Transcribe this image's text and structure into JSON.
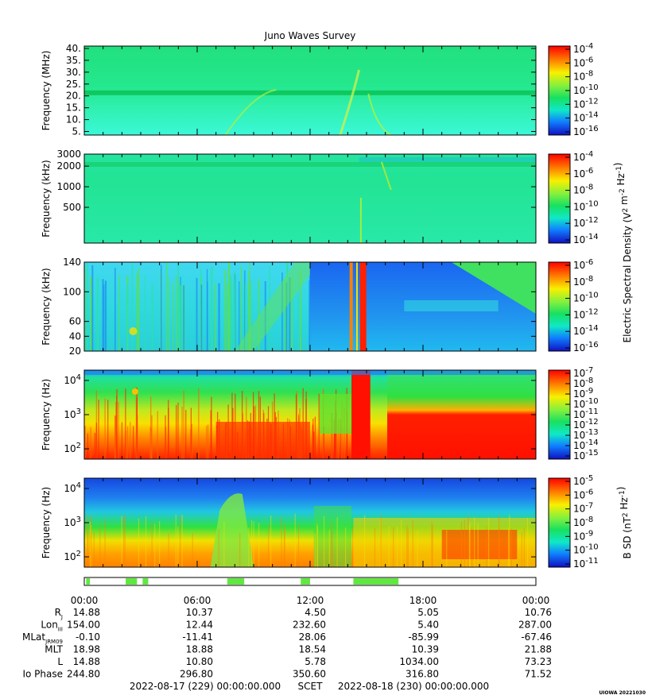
{
  "chart_data": {
    "type": "heatmap",
    "title": "Juno Waves Survey",
    "colors": {
      "background_e": "#1fe07a",
      "band_line": "#20d884",
      "blue_deep": "#1030d8",
      "blue_mid": "#2070f0",
      "red": "#ff1a00",
      "orange": "#ff8000",
      "yellow": "#f8e000"
    },
    "panels": [
      {
        "name": "panel-1",
        "ylabel": "Frequency (MHz)",
        "yticks": [
          "40.",
          "35.",
          "30.",
          "25.",
          "20.",
          "15.",
          "10.",
          "5."
        ],
        "ytick_values": [
          40,
          35,
          30,
          25,
          20,
          15,
          10,
          5
        ],
        "ylim": [
          3.5,
          41
        ]
      },
      {
        "name": "panel-2",
        "ylabel": "Frequency (kHz)",
        "yticks": [
          "3000",
          "2000",
          "1000",
          "500"
        ],
        "ytick_values": [
          3000,
          2000,
          1000,
          500
        ],
        "ylim": [
          150,
          3000
        ],
        "log": true
      },
      {
        "name": "panel-3",
        "ylabel": "Frequency (kHz)",
        "yticks": [
          "140",
          "100",
          "60",
          "40",
          "20"
        ],
        "ytick_values": [
          140,
          100,
          60,
          40,
          20
        ],
        "ylim": [
          20,
          140
        ]
      },
      {
        "name": "panel-4",
        "ylabel": "Frequency (Hz)",
        "yticks": [
          "10^4",
          "10^3",
          "10^2"
        ],
        "ytick_values": [
          10000,
          1000,
          100
        ],
        "ylim": [
          50,
          20000
        ],
        "log": true
      },
      {
        "name": "panel-5",
        "ylabel": "Frequency (Hz)",
        "yticks": [
          "10^4",
          "10^3",
          "10^2"
        ],
        "ytick_values": [
          10000,
          1000,
          100
        ],
        "ylim": [
          50,
          20000
        ],
        "log": true
      }
    ],
    "colorbars": [
      {
        "ticks": [
          "10^-4",
          "10^-6",
          "10^-8",
          "10^-10",
          "10^-12",
          "10^-14",
          "10^-16"
        ],
        "label": ""
      },
      {
        "ticks": [
          "10^-4",
          "10^-6",
          "10^-8",
          "10^-10",
          "10^-12",
          "10^-14"
        ],
        "label": "Electric Spectral Density (V^2 m^-2 Hz^-1)"
      },
      {
        "ticks": [
          "10^-6",
          "10^-8",
          "10^-10",
          "10^-12",
          "10^-14",
          "10^-16"
        ],
        "label": ""
      },
      {
        "ticks": [
          "10^-7",
          "10^-8",
          "10^-9",
          "10^-10",
          "10^-11",
          "10^-12",
          "10^-13",
          "10^-14",
          "10^-15"
        ],
        "label": ""
      },
      {
        "ticks": [
          "10^-5",
          "10^-6",
          "10^-7",
          "10^-8",
          "10^-9",
          "10^-10",
          "10^-11"
        ],
        "label": "B SD (nT^2 Hz^-1)"
      }
    ],
    "x_ticks": [
      "00:00",
      "06:00",
      "12:00",
      "18:00",
      "00:00"
    ],
    "x_hours": [
      0,
      6,
      12,
      18,
      24
    ],
    "ephemeris": [
      {
        "label": "R",
        "sub": "J",
        "values": [
          "14.88",
          "10.37",
          "4.50",
          "5.05",
          "10.76"
        ]
      },
      {
        "label": "Lon",
        "sub": "III",
        "values": [
          "154.00",
          "12.44",
          "232.60",
          "5.40",
          "287.00"
        ]
      },
      {
        "label": "MLat",
        "sub": "JRM09",
        "values": [
          "-0.10",
          "-11.41",
          "28.06",
          "-85.99",
          "-67.46"
        ]
      },
      {
        "label": "MLT",
        "sub": "",
        "values": [
          "18.98",
          "18.88",
          "18.54",
          "10.39",
          "21.88"
        ]
      },
      {
        "label": "L",
        "sub": "",
        "values": [
          "14.88",
          "10.80",
          "5.78",
          "1034.00",
          "73.23"
        ]
      },
      {
        "label": "Io Phase",
        "sub": "",
        "values": [
          "244.80",
          "296.80",
          "350.60",
          "316.80",
          "71.52"
        ]
      }
    ],
    "mode_bar_segments_hours": [
      [
        0.1,
        0.3
      ],
      [
        2.2,
        2.8
      ],
      [
        3.1,
        3.4
      ],
      [
        7.6,
        8.5
      ],
      [
        11.5,
        12.0
      ],
      [
        14.3,
        16.7
      ]
    ],
    "scet_start": "2022-08-17 (229) 00:00:00.000",
    "scet_label": "SCET",
    "scet_end": "2022-08-18 (230) 00:00:00.000",
    "credit": "UIOWA 20221030"
  }
}
